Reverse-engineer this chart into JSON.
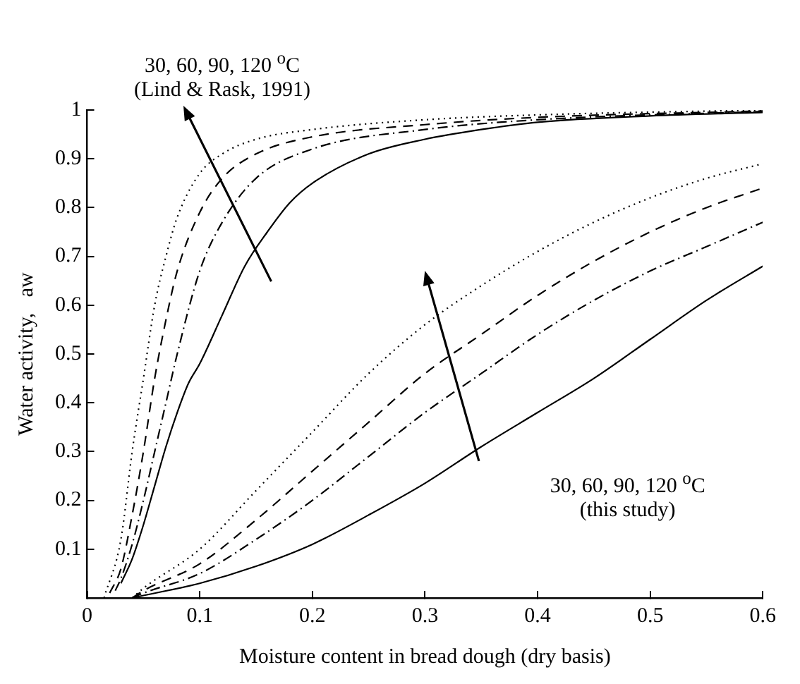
{
  "chart_data": {
    "type": "line",
    "xlabel": "Moisture content in bread dough (dry basis)",
    "ylabel": "Water activity,   aw",
    "xlim": [
      0,
      0.6
    ],
    "ylim": [
      0,
      1
    ],
    "xticks": [
      0,
      0.1,
      0.2,
      0.3,
      0.4,
      0.5,
      0.6
    ],
    "yticks": [
      0.1,
      0.2,
      0.3,
      0.4,
      0.5,
      0.6,
      0.7,
      0.8,
      0.9,
      1
    ],
    "grid": false,
    "legend": false,
    "marker": "none",
    "annotations": [
      "30, 60, 90, 120 $^{o}$C\n(Lind & Rask, 1991)",
      "30, 60, 90, 120 $^{o}$C\n(this study)"
    ],
    "series": [
      {
        "color": "#000000",
        "line_style": "solid",
        "x": [
          0.03,
          0.04,
          0.05,
          0.06,
          0.07,
          0.08,
          0.09,
          0.1,
          0.12,
          0.14,
          0.16,
          0.18,
          0.2,
          0.25,
          0.3,
          0.35,
          0.4,
          0.5,
          0.6
        ],
        "values": [
          0.03,
          0.08,
          0.15,
          0.23,
          0.31,
          0.38,
          0.44,
          0.48,
          0.58,
          0.68,
          0.75,
          0.81,
          0.85,
          0.91,
          0.94,
          0.96,
          0.975,
          0.988,
          0.995
        ]
      },
      {
        "color": "#000000",
        "line_style": "dashdot",
        "x": [
          0.025,
          0.03,
          0.04,
          0.05,
          0.06,
          0.07,
          0.08,
          0.1,
          0.12,
          0.15,
          0.2,
          0.3,
          0.4,
          0.6
        ],
        "values": [
          0.015,
          0.04,
          0.11,
          0.2,
          0.3,
          0.4,
          0.5,
          0.67,
          0.77,
          0.86,
          0.92,
          0.96,
          0.98,
          0.997
        ]
      },
      {
        "color": "#000000",
        "line_style": "dashed",
        "x": [
          0.02,
          0.03,
          0.04,
          0.05,
          0.06,
          0.07,
          0.08,
          0.1,
          0.12,
          0.15,
          0.2,
          0.3,
          0.4,
          0.6
        ],
        "values": [
          0.01,
          0.06,
          0.17,
          0.3,
          0.45,
          0.57,
          0.67,
          0.79,
          0.86,
          0.91,
          0.945,
          0.97,
          0.985,
          0.998
        ]
      },
      {
        "color": "#000000",
        "line_style": "dotted",
        "x": [
          0.015,
          0.03,
          0.04,
          0.05,
          0.06,
          0.07,
          0.08,
          0.1,
          0.12,
          0.15,
          0.2,
          0.3,
          0.4,
          0.6
        ],
        "values": [
          0,
          0.12,
          0.3,
          0.45,
          0.6,
          0.7,
          0.78,
          0.87,
          0.91,
          0.94,
          0.96,
          0.98,
          0.99,
          1
        ]
      },
      {
        "color": "#000000",
        "line_style": "solid",
        "x": [
          0.04,
          0.05,
          0.1,
          0.15,
          0.2,
          0.25,
          0.3,
          0.35,
          0.4,
          0.45,
          0.5,
          0.55,
          0.6
        ],
        "values": [
          0,
          0.005,
          0.03,
          0.065,
          0.11,
          0.17,
          0.235,
          0.31,
          0.38,
          0.45,
          0.53,
          0.61,
          0.68
        ]
      },
      {
        "color": "#000000",
        "line_style": "dashdot",
        "x": [
          0.04,
          0.05,
          0.1,
          0.15,
          0.2,
          0.25,
          0.3,
          0.35,
          0.4,
          0.45,
          0.5,
          0.55,
          0.6
        ],
        "values": [
          0,
          0.01,
          0.05,
          0.12,
          0.2,
          0.29,
          0.38,
          0.46,
          0.54,
          0.61,
          0.67,
          0.72,
          0.77
        ]
      },
      {
        "color": "#000000",
        "line_style": "dashed",
        "x": [
          0.04,
          0.05,
          0.1,
          0.15,
          0.2,
          0.25,
          0.3,
          0.35,
          0.4,
          0.45,
          0.5,
          0.55,
          0.6
        ],
        "values": [
          0,
          0.015,
          0.07,
          0.16,
          0.26,
          0.36,
          0.46,
          0.54,
          0.62,
          0.69,
          0.75,
          0.8,
          0.84
        ]
      },
      {
        "color": "#000000",
        "line_style": "dotted",
        "x": [
          0.04,
          0.05,
          0.1,
          0.15,
          0.2,
          0.25,
          0.3,
          0.35,
          0.4,
          0.45,
          0.5,
          0.55,
          0.6
        ],
        "values": [
          0,
          0.02,
          0.1,
          0.22,
          0.34,
          0.46,
          0.56,
          0.64,
          0.71,
          0.77,
          0.82,
          0.86,
          0.89
        ]
      }
    ]
  }
}
